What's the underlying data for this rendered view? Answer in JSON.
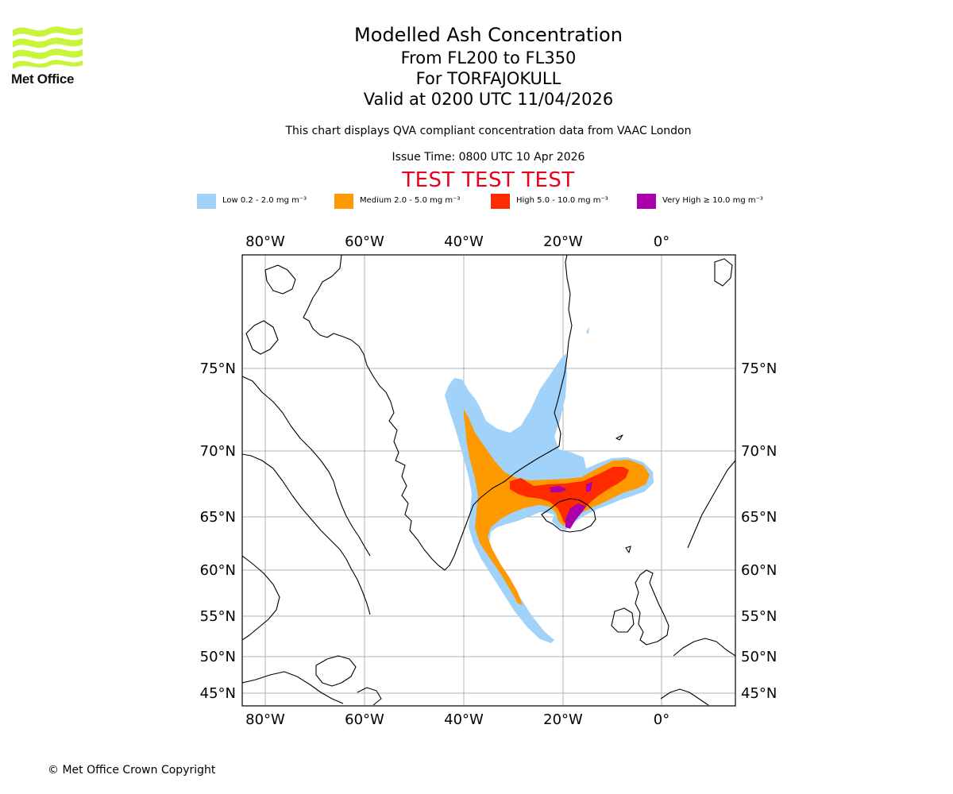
{
  "logo": {
    "text": "Met Office",
    "color": "#c8f53a"
  },
  "title": {
    "main": "Modelled Ash Concentration",
    "levels": "From FL200 to FL350",
    "volcano": "For TORFAJOKULL",
    "valid": "Valid at 0200 UTC 11/04/2026"
  },
  "info": {
    "compliance": "This chart displays QVA compliant concentration data from VAAC London",
    "issue": "Issue Time: 0800 UTC 10 Apr 2026"
  },
  "banner": "TEST TEST TEST",
  "legend": [
    {
      "label": "Low 0.2 - 2.0 mg m⁻³",
      "color": "#a0d2fa"
    },
    {
      "label": "Medium 2.0 - 5.0 mg m⁻³",
      "color": "#ff9900"
    },
    {
      "label": "High 5.0 - 10.0 mg m⁻³",
      "color": "#ff2a00"
    },
    {
      "label": "Very High ≥ 10.0 mg m⁻³",
      "color": "#aa00aa"
    }
  ],
  "axes": {
    "lon_labels": [
      "80°W",
      "60°W",
      "40°W",
      "20°W",
      "0°"
    ],
    "lat_labels": [
      "75°N",
      "70°N",
      "65°N",
      "60°N",
      "55°N",
      "50°N",
      "45°N"
    ]
  },
  "copyright": "© Met Office Crown Copyright"
}
